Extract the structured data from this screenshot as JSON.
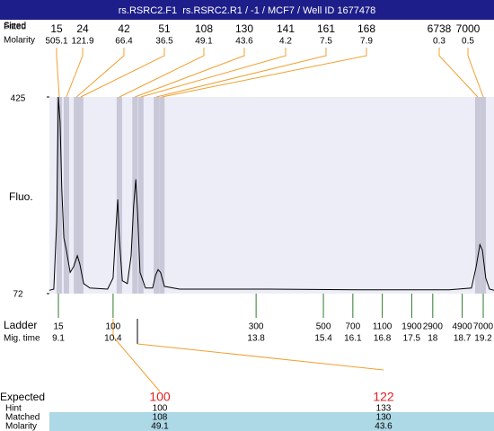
{
  "chart_data": {
    "type": "line",
    "title": "rs.RSRC2.F1  rs.RSRC2.R1 / -1 / MCF7 / Well ID 1677478",
    "y_label": "Fluo.",
    "peak_row_labels": [
      "Sized",
      "Fitted",
      "Molarity"
    ],
    "peaks": {
      "sizes": [
        15,
        24,
        42,
        51,
        108,
        130,
        141,
        161,
        168,
        6738,
        7000
      ],
      "molarity": [
        505.1,
        121.9,
        66.4,
        36.5,
        49.1,
        43.6,
        4.2,
        7.5,
        7.9,
        0.3,
        0.5
      ],
      "times": [
        9.12,
        9.29,
        9.53,
        9.63,
        10.55,
        10.92,
        11.06,
        11.43,
        11.56,
        19.07,
        19.2
      ]
    },
    "x": [
      8.886,
      8.99,
      9.06,
      9.1,
      9.14,
      9.18,
      9.23,
      9.29,
      9.38,
      9.46,
      9.55,
      9.61,
      9.7,
      9.85,
      10.27,
      10.4,
      10.46,
      10.51,
      10.55,
      10.62,
      10.74,
      10.83,
      10.89,
      10.94,
      10.98,
      11.04,
      11.17,
      11.34,
      11.41,
      11.47,
      11.53,
      11.62,
      11.98,
      14.12,
      16.25,
      18.39,
      18.92,
      19.03,
      19.12,
      19.18,
      19.26,
      19.35,
      19.456
    ],
    "series": [
      {
        "name": "Fluorescence",
        "color": "#000000",
        "values": [
          78,
          80,
          200,
          425,
          380,
          260,
          172,
          150,
          110,
          120,
          140,
          125,
          90,
          82,
          80,
          100,
          180,
          241,
          170,
          95,
          90,
          140,
          230,
          277,
          220,
          110,
          82,
          82,
          105,
          115,
          110,
          85,
          80,
          80,
          79,
          79,
          82,
          120,
          160,
          150,
          100,
          80,
          78
        ]
      }
    ],
    "xlim": [
      8.886,
      19.456
    ],
    "ylim": [
      72,
      425
    ],
    "yticks": [
      72,
      425
    ],
    "ladder_row_labels": [
      "Ladder",
      "Mig. time"
    ],
    "ladder": {
      "sizes": [
        15,
        100,
        300,
        500,
        700,
        1100,
        1900,
        2900,
        4900,
        7000
      ],
      "times": [
        9.1,
        10.4,
        13.8,
        15.4,
        16.1,
        16.8,
        17.5,
        18,
        18.7,
        19.2
      ]
    },
    "match_table": {
      "row_labels": [
        "Expected",
        "Hint",
        "Matched",
        "Molarity"
      ],
      "expected": [
        100,
        122
      ],
      "hint": [
        100,
        133
      ],
      "matched": [
        108,
        130
      ],
      "molarity": [
        49.1,
        43.6
      ]
    }
  }
}
